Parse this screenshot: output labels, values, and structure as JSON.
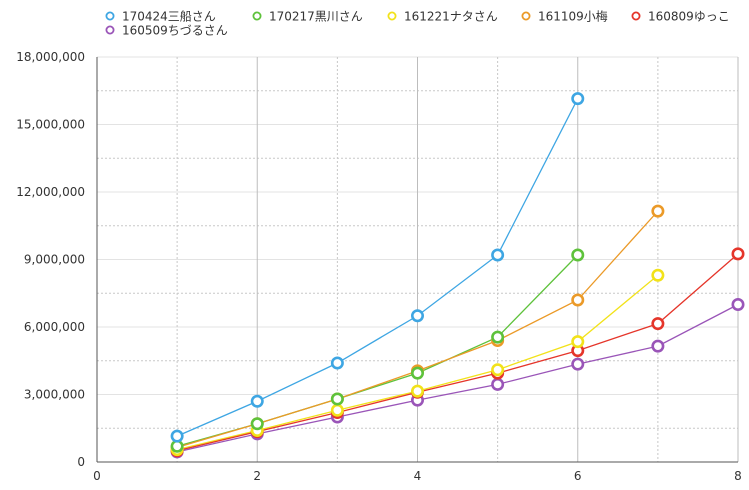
{
  "chart_data": {
    "type": "line",
    "title": "",
    "xlabel": "",
    "ylabel": "",
    "xlim": [
      0,
      8
    ],
    "ylim": [
      0,
      18000000
    ],
    "x_ticks": [
      0,
      2,
      4,
      6,
      8
    ],
    "x_tick_labels": [
      "0",
      "2",
      "4",
      "6",
      "8"
    ],
    "y_ticks": [
      0,
      3000000,
      6000000,
      9000000,
      12000000,
      15000000,
      18000000
    ],
    "y_tick_labels": [
      "0",
      "3,000,000",
      "6,000,000",
      "9,000,000",
      "12,000,000",
      "15,000,000",
      "18,000,000"
    ],
    "grid": true,
    "legend_position": "top",
    "series": [
      {
        "name": "170424三船さん",
        "color": "#3ea6e3",
        "x": [
          1,
          2,
          3,
          4,
          5,
          6
        ],
        "y": [
          1150000,
          2700000,
          4400000,
          6500000,
          9200000,
          16150000
        ]
      },
      {
        "name": "170217黒川さん",
        "color": "#5ec23b",
        "x": [
          1,
          2,
          3,
          4,
          5,
          6
        ],
        "y": [
          700000,
          1700000,
          2800000,
          3950000,
          5550000,
          9200000
        ]
      },
      {
        "name": "161221ナタさん",
        "color": "#f2e21a",
        "x": [
          1,
          2,
          3,
          4,
          5,
          6,
          7
        ],
        "y": [
          550000,
          1400000,
          2300000,
          3150000,
          4100000,
          5350000,
          8300000
        ]
      },
      {
        "name": "161109小梅",
        "color": "#eb9a28",
        "x": [
          1,
          2,
          3,
          4,
          5,
          6,
          7
        ],
        "y": [
          650000,
          1700000,
          2800000,
          4050000,
          5400000,
          7200000,
          11150000
        ]
      },
      {
        "name": "160809ゆっこ",
        "color": "#e5352a",
        "x": [
          1,
          2,
          3,
          4,
          5,
          6,
          7,
          8
        ],
        "y": [
          500000,
          1350000,
          2200000,
          3100000,
          3950000,
          4950000,
          6150000,
          9250000
        ]
      },
      {
        "name": "160509ちづるさん",
        "color": "#9a55b8",
        "x": [
          1,
          2,
          3,
          4,
          5,
          6,
          7,
          8
        ],
        "y": [
          450000,
          1250000,
          2000000,
          2750000,
          3450000,
          4350000,
          5150000,
          7000000
        ]
      }
    ]
  }
}
